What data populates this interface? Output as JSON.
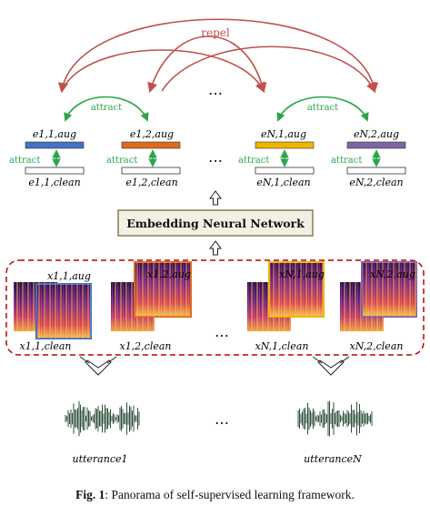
{
  "repel_label": "repel",
  "attract_label": "attract",
  "ellipsis": "…",
  "network_label": "Embedding Neural Network",
  "embedding_labels": {
    "e11aug": "e1,1,aug",
    "e12aug": "e1,2,aug",
    "eN1aug": "eN,1,aug",
    "eN2aug": "eN,2,aug",
    "e11clean": "e1,1,clean",
    "e12clean": "e1,2,clean",
    "eN1clean": "eN,1,clean",
    "eN2clean": "eN,2,clean"
  },
  "spectrogram_labels": {
    "x11aug": "x1,1,aug",
    "x12aug": "x1,2,aug",
    "xN1aug": "xN,1,aug",
    "xN2aug": "xN,2,aug",
    "x11clean": "x1,1,clean",
    "x12clean": "x1,2,clean",
    "xN1clean": "xN,1,clean",
    "xN2clean": "xN,2,clean"
  },
  "utterances": [
    "utterance1",
    "utteranceN"
  ],
  "caption": {
    "prefix": "Fig. 1",
    "text": ": Panorama of self-supervised learning framework."
  },
  "colors": {
    "repel": "#c0504d",
    "attract": "#2aa64a",
    "bar_blue": "#4472c4",
    "bar_orange": "#e06a1c",
    "bar_yellow": "#f0b400",
    "bar_purple": "#8064a2",
    "dashed_box": "#c00000",
    "network_fill": "#f2efe3",
    "network_border": "#8b7d5a"
  }
}
